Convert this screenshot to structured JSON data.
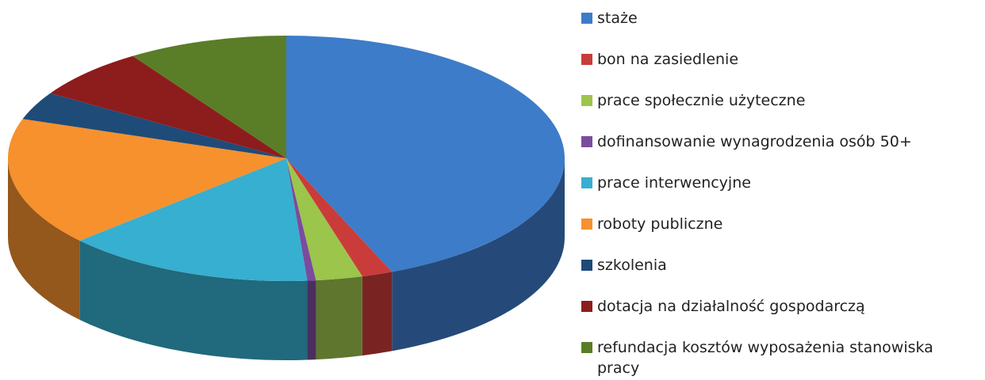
{
  "chart_data": {
    "type": "pie",
    "categories": [
      "staże",
      "bon na zasiedlenie",
      "prace społecznie użyteczne",
      "dofinansowanie wynagrodzenia osób 50+",
      "prace interwencyjne",
      "roboty publiczne",
      "szkolenia",
      "dotacja na działalność gospodarczą",
      "refundacja kosztów wyposażenia stanowiska pracy"
    ],
    "values": [
      43.8,
      1.8,
      2.7,
      0.5,
      14.5,
      16.9,
      3.7,
      6.8,
      9.3
    ],
    "colors": [
      "#3d7cc9",
      "#c93c3a",
      "#9cc54b",
      "#7b4c9e",
      "#37afd0",
      "#f6912e",
      "#1f4b78",
      "#8d1c1c",
      "#5a7d27"
    ],
    "legend": "right"
  }
}
